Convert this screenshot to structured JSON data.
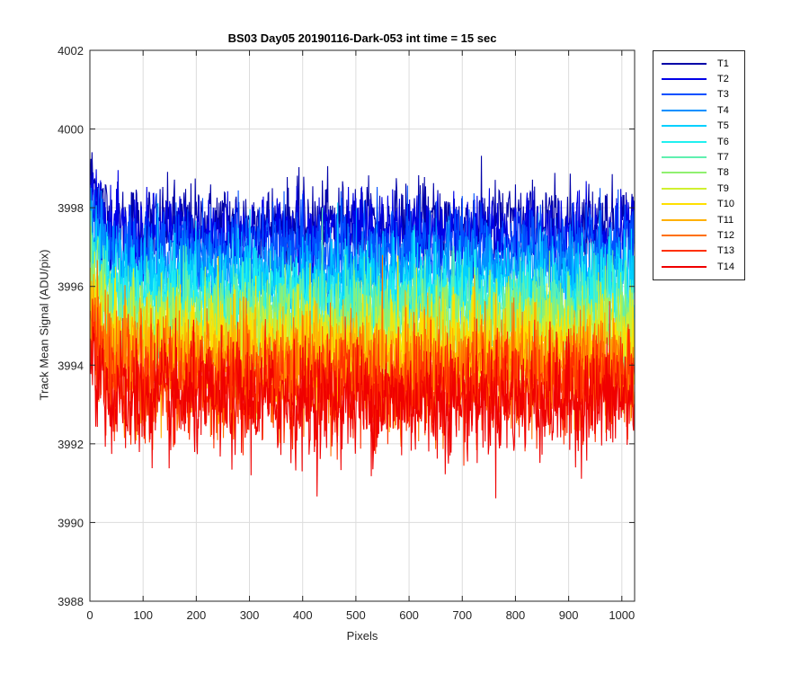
{
  "chart_data": {
    "type": "line",
    "title": "BS03 Day05 20190116-Dark-053 int time = 15 sec",
    "xlabel": "Pixels",
    "ylabel": "Track Mean Signal (ADU/pix)",
    "xlim": [
      0,
      1024
    ],
    "ylim": [
      3988,
      4002
    ],
    "xticks": [
      0,
      100,
      200,
      300,
      400,
      500,
      600,
      700,
      800,
      900,
      1000
    ],
    "yticks": [
      3988,
      3990,
      3992,
      3994,
      3996,
      3998,
      4000,
      4002
    ],
    "grid": true,
    "legend_position": "outside-top-right",
    "x": {
      "start": 1,
      "end": 1024
    },
    "series": [
      {
        "name": "T1",
        "color": "#0000a8",
        "mean": 3997.6,
        "noise": 0.75
      },
      {
        "name": "T2",
        "color": "#0000e8",
        "mean": 3997.3,
        "noise": 0.75
      },
      {
        "name": "T3",
        "color": "#0050ff",
        "mean": 3996.9,
        "noise": 0.8
      },
      {
        "name": "T4",
        "color": "#0090ff",
        "mean": 3996.4,
        "noise": 0.8
      },
      {
        "name": "T5",
        "color": "#00d0ff",
        "mean": 3996.0,
        "noise": 0.85
      },
      {
        "name": "T6",
        "color": "#20f0f0",
        "mean": 3995.6,
        "noise": 0.85
      },
      {
        "name": "T7",
        "color": "#60f0b0",
        "mean": 3995.3,
        "noise": 0.9
      },
      {
        "name": "T8",
        "color": "#90f070",
        "mean": 3995.0,
        "noise": 0.9
      },
      {
        "name": "T9",
        "color": "#d0f030",
        "mean": 3994.7,
        "noise": 0.9
      },
      {
        "name": "T10",
        "color": "#ffe000",
        "mean": 3994.4,
        "noise": 0.95
      },
      {
        "name": "T11",
        "color": "#ffb000",
        "mean": 3994.1,
        "noise": 0.95
      },
      {
        "name": "T12",
        "color": "#ff7000",
        "mean": 3993.8,
        "noise": 1.0
      },
      {
        "name": "T13",
        "color": "#ff3000",
        "mean": 3993.5,
        "noise": 1.0
      },
      {
        "name": "T14",
        "color": "#f00000",
        "mean": 3993.1,
        "noise": 1.05
      }
    ]
  }
}
